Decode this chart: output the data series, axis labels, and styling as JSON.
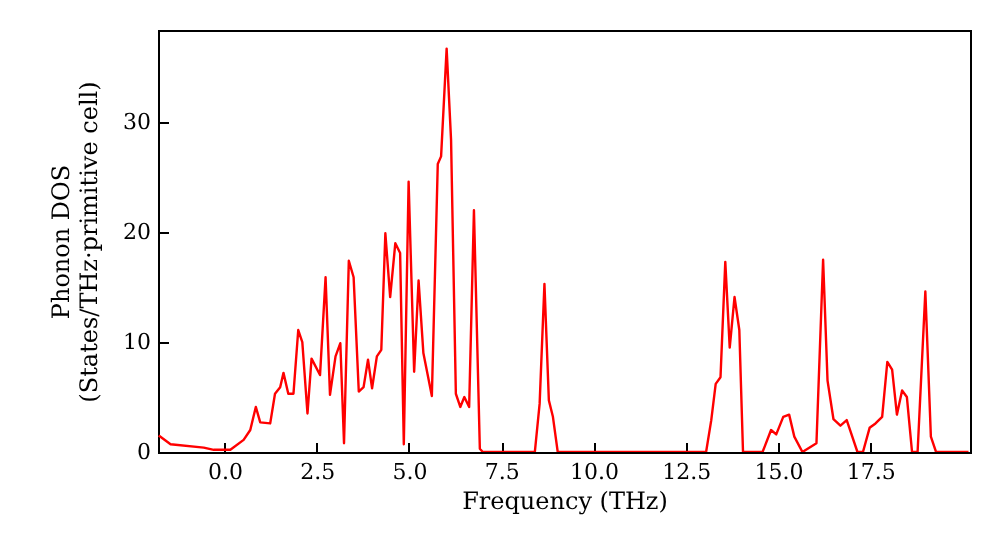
{
  "chart_data": {
    "type": "line",
    "xlabel": "Frequency (THz)",
    "ylabel": "Phonon DOS\n(States/THz·primitive cell)",
    "x": [
      -1.78,
      -1.46,
      -0.56,
      -0.29,
      0.16,
      0.52,
      0.7,
      0.85,
      0.97,
      1.24,
      1.37,
      1.51,
      1.6,
      1.73,
      1.87,
      2.0,
      2.11,
      2.25,
      2.36,
      2.59,
      2.74,
      2.86,
      3.01,
      3.14,
      3.24,
      3.37,
      3.5,
      3.64,
      3.77,
      3.89,
      4.0,
      4.13,
      4.25,
      4.36,
      4.49,
      4.63,
      4.76,
      4.86,
      4.99,
      5.14,
      5.26,
      5.39,
      5.62,
      5.78,
      5.87,
      6.02,
      6.14,
      6.27,
      6.39,
      6.5,
      6.63,
      6.76,
      6.92,
      7.0,
      8.41,
      8.54,
      8.67,
      8.79,
      8.9,
      9.03,
      13.05,
      13.19,
      13.31,
      13.44,
      13.57,
      13.69,
      13.82,
      13.95,
      14.05,
      14.58,
      14.81,
      14.95,
      15.14,
      15.3,
      15.44,
      15.66,
      16.04,
      16.22,
      16.34,
      16.5,
      16.69,
      16.86,
      17.15,
      17.3,
      17.48,
      17.64,
      17.82,
      17.96,
      18.09,
      18.22,
      18.36,
      18.49,
      18.63,
      18.78,
      18.99,
      19.14,
      19.28,
      20.16
    ],
    "series": [
      {
        "color": "#ff0000",
        "values": [
          1.5,
          0.7,
          0.4,
          0.2,
          0.2,
          1.1,
          2,
          4.1,
          2.7,
          2.6,
          5.3,
          5.9,
          7.2,
          5.3,
          5.3,
          11.1,
          10,
          3.5,
          8.5,
          7,
          15.9,
          5.2,
          8.7,
          9.9,
          0.8,
          17.4,
          15.9,
          5.5,
          5.9,
          8.4,
          5.8,
          8.7,
          9.3,
          19.9,
          14.1,
          19,
          18.1,
          0.7,
          24.6,
          7.3,
          15.6,
          9,
          5.1,
          26.2,
          26.9,
          36.7,
          28.4,
          5.3,
          4.1,
          5,
          4.1,
          22,
          0.3,
          0,
          0,
          4.4,
          15.3,
          4.7,
          3.2,
          0,
          0,
          2.9,
          6.2,
          6.8,
          17.3,
          9.5,
          14.1,
          11.1,
          0,
          0,
          2,
          1.6,
          3.2,
          3.4,
          1.4,
          0,
          0.8,
          17.5,
          6.5,
          3,
          2.4,
          2.9,
          0,
          0,
          2.2,
          2.6,
          3.2,
          8.2,
          7.5,
          3.4,
          5.6,
          5,
          0,
          0,
          14.6,
          1.4,
          0,
          0
        ]
      }
    ],
    "xlim": [
      -1.8,
      20.2
    ],
    "ylim": [
      0,
      38.4
    ],
    "xticks": [
      {
        "value": 0,
        "label": "0.0"
      },
      2.5,
      {
        "value": 5,
        "label": "5.0"
      },
      7.5,
      {
        "value": 10,
        "label": "10.0"
      },
      12.5,
      {
        "value": 15,
        "label": "15.0"
      },
      17.5
    ],
    "yticks": [
      0,
      10,
      20,
      30
    ],
    "grid": false
  }
}
